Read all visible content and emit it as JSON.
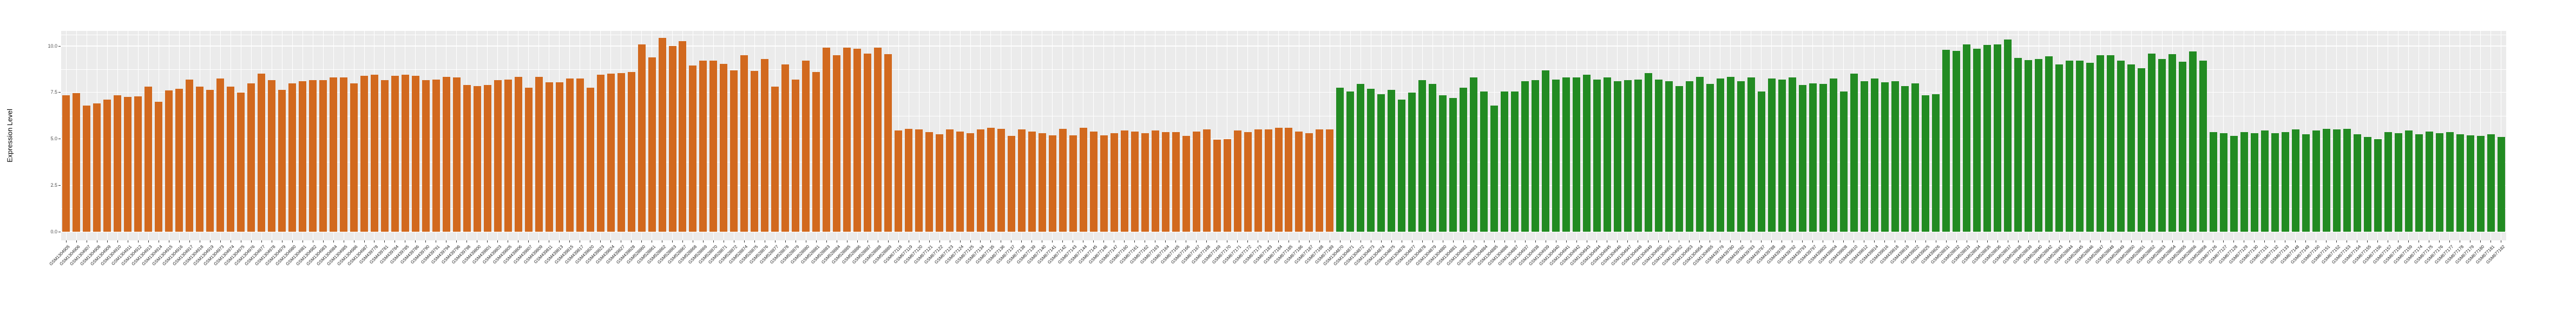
{
  "chart_data": {
    "type": "bar",
    "title": "",
    "xlabel": "",
    "ylabel": "Expression Level",
    "ylim": [
      0,
      10.8
    ],
    "yticks": [
      0,
      2.5,
      5,
      7.5,
      10
    ],
    "ytick_labels": [
      "0.0",
      "2.5",
      "5.0",
      "7.5",
      "10.0"
    ],
    "yticks_minor": [
      1.25,
      3.75,
      6.25,
      8.75,
      10.625
    ],
    "grid": "on",
    "legend": "none",
    "panel_bg": "#EBEBEB",
    "grid_color": "#FFFFFF",
    "segments": [
      {
        "color": "#D2691E",
        "labels": [
          "GSM1304905",
          "GSM1304906",
          "GSM1304907",
          "GSM1304908",
          "GSM1304909",
          "GSM1304910",
          "GSM1304911",
          "GSM1304912",
          "GSM1304913",
          "GSM1304914",
          "GSM1304915",
          "GSM1304916",
          "GSM1304917",
          "GSM1304918",
          "GSM1304919",
          "GSM1304973",
          "GSM1304974",
          "GSM1304975",
          "GSM1304976",
          "GSM1304977",
          "GSM1304978",
          "GSM1304979",
          "GSM1304980",
          "GSM1304981",
          "GSM1304982",
          "GSM1304983",
          "GSM1304984",
          "GSM1304985",
          "GSM1304986",
          "GSM1304987",
          "GSM439778",
          "GSM439781",
          "GSM439784",
          "GSM439785",
          "GSM439786",
          "GSM439790",
          "GSM439791",
          "GSM439794",
          "GSM439796",
          "GSM439798",
          "GSM439800",
          "GSM439801",
          "GSM439803",
          "GSM439805",
          "GSM439806",
          "GSM439807",
          "GSM439809",
          "GSM439811",
          "GSM439813",
          "GSM439815",
          "GSM439817",
          "GSM439820",
          "GSM439823",
          "GSM439824",
          "GSM439827",
          "GSM439828",
          "GSM528860",
          "GSM528861",
          "GSM528862",
          "GSM528863",
          "GSM528867",
          "GSM528868",
          "GSM528869",
          "GSM528870",
          "GSM528871",
          "GSM528872",
          "GSM528874",
          "GSM528875",
          "GSM528876",
          "GSM528877",
          "GSM528878",
          "GSM528879",
          "GSM528880",
          "GSM528881",
          "GSM528883",
          "GSM528884",
          "GSM528885",
          "GSM528886",
          "GSM528887",
          "GSM528888",
          "GSM528889",
          "GSM677118",
          "GSM677119",
          "GSM677120",
          "GSM677121",
          "GSM677122",
          "GSM677123",
          "GSM677124",
          "GSM677125",
          "GSM677134",
          "GSM677135",
          "GSM677136",
          "GSM677137",
          "GSM677138",
          "GSM677139",
          "GSM677140",
          "GSM677141",
          "GSM677142",
          "GSM677143",
          "GSM677144",
          "GSM677145",
          "GSM677146",
          "GSM677147",
          "GSM677160",
          "GSM677161",
          "GSM677162",
          "GSM677163",
          "GSM677164",
          "GSM677165",
          "GSM677166",
          "GSM677167",
          "GSM677168",
          "GSM677169",
          "GSM677170",
          "GSM677171",
          "GSM677172",
          "GSM677173",
          "GSM677183",
          "GSM677184",
          "GSM677185",
          "GSM677186",
          "GSM677187",
          "GSM677188",
          "GSM677189"
        ],
        "values": [
          7.35,
          7.45,
          6.8,
          6.9,
          7.1,
          7.35,
          7.25,
          7.3,
          7.8,
          7.0,
          7.6,
          7.7,
          8.2,
          7.8,
          7.65,
          8.25,
          7.8,
          7.5,
          8.0,
          8.5,
          8.15,
          7.65,
          8.0,
          8.1,
          8.15,
          8.15,
          8.3,
          8.3,
          8.0,
          8.4,
          8.45,
          8.15,
          8.4,
          8.45,
          8.4,
          8.15,
          8.2,
          8.35,
          8.3,
          7.9,
          7.85,
          7.9,
          8.15,
          8.2,
          8.35,
          7.75,
          8.35,
          8.05,
          8.05,
          8.25,
          8.25,
          7.75,
          8.45,
          8.5,
          8.55,
          8.6,
          10.1,
          9.4,
          10.45,
          10.0,
          10.25,
          8.95,
          9.2,
          9.2,
          9.05,
          8.7,
          9.5,
          8.65,
          9.3,
          7.8,
          9.0,
          8.2,
          9.2,
          8.6,
          9.9,
          9.5,
          9.9,
          9.85,
          9.6,
          9.9,
          9.55,
          5.45,
          5.55,
          5.5,
          5.35,
          5.25,
          5.5,
          5.4,
          5.3,
          5.5,
          5.6,
          5.55,
          5.15,
          5.5,
          5.4,
          5.3,
          5.2,
          5.55,
          5.2,
          5.6,
          5.4,
          5.2,
          5.3,
          5.45,
          5.4,
          5.3,
          5.45,
          5.35,
          5.35,
          5.15,
          5.4,
          5.5,
          4.95,
          5.0,
          5.45,
          5.35,
          5.5,
          5.5,
          5.6,
          5.6,
          5.4,
          5.3,
          5.5,
          5.5
        ]
      },
      {
        "color": "#228B22",
        "labels": [
          "GSM1304870",
          "GSM1304871",
          "GSM1304872",
          "GSM1304873",
          "GSM1304874",
          "GSM1304875",
          "GSM1304876",
          "GSM1304877",
          "GSM1304878",
          "GSM1304879",
          "GSM1304880",
          "GSM1304881",
          "GSM1304882",
          "GSM1304883",
          "GSM1304884",
          "GSM1304885",
          "GSM1304886",
          "GSM1304887",
          "GSM1304937",
          "GSM1304938",
          "GSM1304939",
          "GSM1304940",
          "GSM1304941",
          "GSM1304942",
          "GSM1304943",
          "GSM1304944",
          "GSM1304945",
          "GSM1304946",
          "GSM1304947",
          "GSM1304948",
          "GSM1304949",
          "GSM1304950",
          "GSM1304951",
          "GSM1304952",
          "GSM1304953",
          "GSM1304954",
          "GSM1304955",
          "GSM439779",
          "GSM439780",
          "GSM439782",
          "GSM439783",
          "GSM439787",
          "GSM439788",
          "GSM439789",
          "GSM439792",
          "GSM439793",
          "GSM439797",
          "GSM439802",
          "GSM439804",
          "GSM439808",
          "GSM439810",
          "GSM439812",
          "GSM439814",
          "GSM439816",
          "GSM439818",
          "GSM439819",
          "GSM439822",
          "GSM439825",
          "GSM439826",
          "GSM528831",
          "GSM528832",
          "GSM528833",
          "GSM528834",
          "GSM528835",
          "GSM528836",
          "GSM528837",
          "GSM528838",
          "GSM528839",
          "GSM528840",
          "GSM528842",
          "GSM528843",
          "GSM528844",
          "GSM528845",
          "GSM528846",
          "GSM528847",
          "GSM528848",
          "GSM528849",
          "GSM528850",
          "GSM528851",
          "GSM528852",
          "GSM528853",
          "GSM528854",
          "GSM528855",
          "GSM528856",
          "GSM528858",
          "GSM677126",
          "GSM677127",
          "GSM677128",
          "GSM677129",
          "GSM677130",
          "GSM677131",
          "GSM677132",
          "GSM677133",
          "GSM677148",
          "GSM677149",
          "GSM677150",
          "GSM677151",
          "GSM677152",
          "GSM677153",
          "GSM677154",
          "GSM677155",
          "GSM677156",
          "GSM677157",
          "GSM677158",
          "GSM677159",
          "GSM677174",
          "GSM677175",
          "GSM677176",
          "GSM677177",
          "GSM677178",
          "GSM677179",
          "GSM677180",
          "GSM677181",
          "GSM677182"
        ],
        "values": [
          7.75,
          7.55,
          7.95,
          7.7,
          7.4,
          7.65,
          7.1,
          7.5,
          8.15,
          7.95,
          7.35,
          7.2,
          7.75,
          8.3,
          7.55,
          6.8,
          7.55,
          7.55,
          8.1,
          8.15,
          8.7,
          8.2,
          8.3,
          8.3,
          8.45,
          8.2,
          8.3,
          8.1,
          8.15,
          8.2,
          8.55,
          8.2,
          8.1,
          7.85,
          8.1,
          8.35,
          7.95,
          8.25,
          8.35,
          8.1,
          8.3,
          7.55,
          8.25,
          8.2,
          8.3,
          7.9,
          8.0,
          7.95,
          8.25,
          7.55,
          8.5,
          8.1,
          8.25,
          8.05,
          8.1,
          7.85,
          8.0,
          7.35,
          7.4,
          9.8,
          9.75,
          10.1,
          9.85,
          10.05,
          10.1,
          10.35,
          9.35,
          9.25,
          9.3,
          9.45,
          9.0,
          9.2,
          9.2,
          9.1,
          9.5,
          9.5,
          9.2,
          9.0,
          8.8,
          9.6,
          9.3,
          9.55,
          9.15,
          9.7,
          9.2,
          5.35,
          5.3,
          5.15,
          5.35,
          5.3,
          5.45,
          5.3,
          5.35,
          5.5,
          5.25,
          5.45,
          5.55,
          5.5,
          5.55,
          5.25,
          5.1,
          5.0,
          5.35,
          5.3,
          5.45,
          5.25,
          5.4,
          5.3,
          5.35,
          5.25,
          5.2,
          5.15,
          5.25,
          5.1
        ]
      }
    ]
  }
}
